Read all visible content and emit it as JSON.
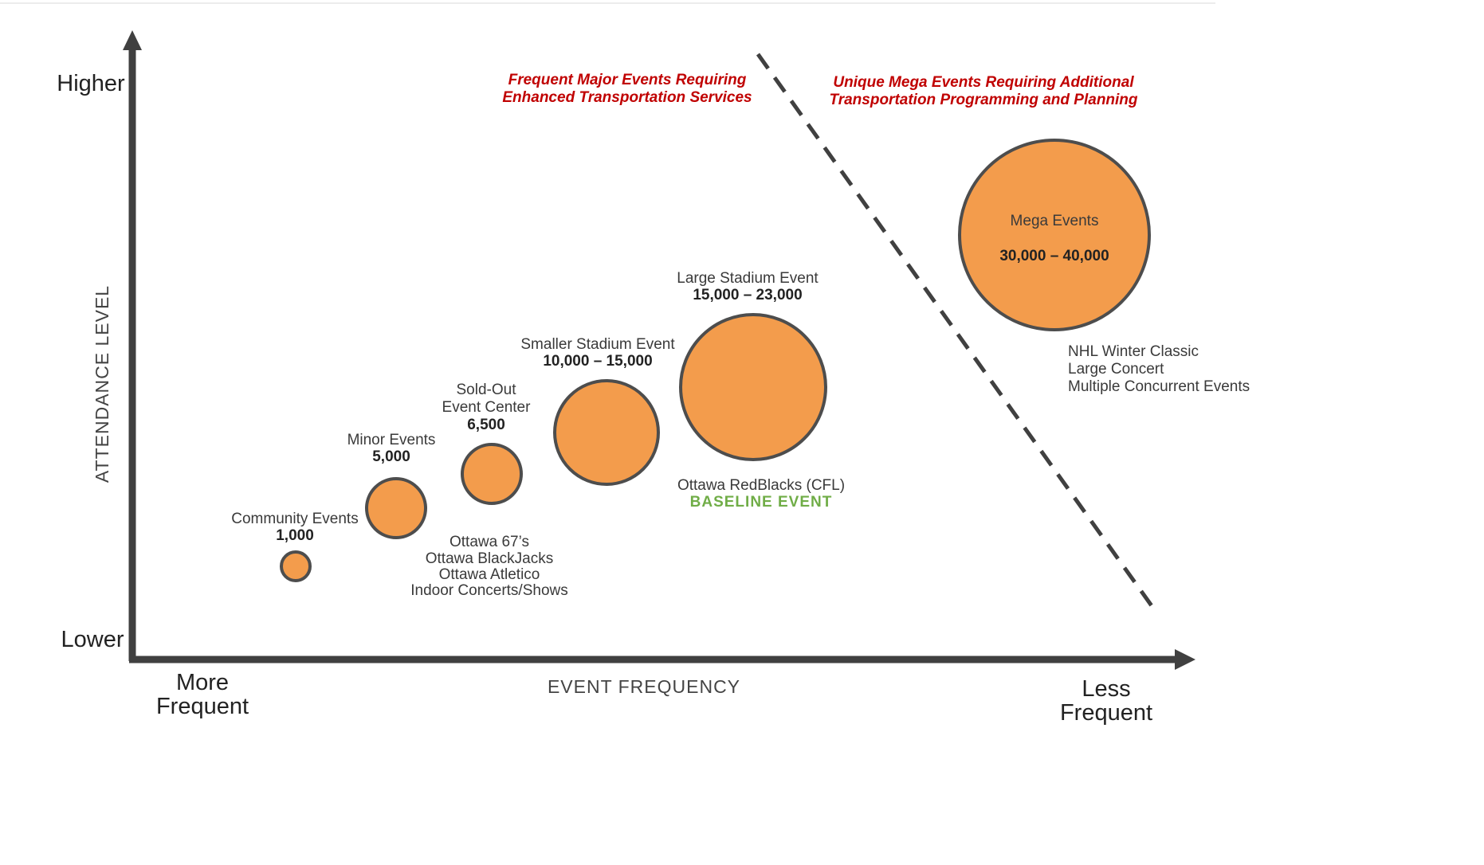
{
  "axes": {
    "y_top": "Higher",
    "y_bottom": "Lower",
    "y_title": "ATTENDANCE LEVEL",
    "x_left": [
      "More",
      "Frequent"
    ],
    "x_right": [
      "Less",
      "Frequent"
    ],
    "x_title": "EVENT FREQUENCY"
  },
  "zones": {
    "frequent_major": [
      "Frequent  Major  Events  Requiring",
      "Enhanced  Transportation  Services"
    ],
    "unique_mega": [
      "Unique  Mega  Events  Requiring  Additional",
      "Transportation  Programming  and  Planning"
    ]
  },
  "bubbles": [
    {
      "label": [
        "Community Events"
      ],
      "value": "1,000",
      "examples": []
    },
    {
      "label": [
        "Minor Events"
      ],
      "value": "5,000",
      "examples": []
    },
    {
      "label": [
        "Sold-Out",
        "Event  Center"
      ],
      "value": "6,500",
      "examples": [
        "Ottawa 67’s",
        "Ottawa BlackJacks",
        "Ottawa Atletico",
        "Indoor Concerts/Shows"
      ]
    },
    {
      "label": [
        "Smaller  Stadium  Event"
      ],
      "value": "10,000  – 15,000",
      "examples": []
    },
    {
      "label": [
        "Large  Stadium  Event"
      ],
      "value": "15,000  – 23,000",
      "examples": [
        "Ottawa  RedBlacks  (CFL)"
      ],
      "tag": "BASELINE  EVENT"
    },
    {
      "label": [
        "Mega  Events"
      ],
      "value": "30,000  – 40,000",
      "examples": [
        "NHL  Winter  Classic",
        "Large  Concert",
        "Multiple  Concurrent  Events"
      ]
    }
  ],
  "colors": {
    "bubble_fill": "#f39c4c",
    "bubble_stroke": "#4d4d4d",
    "axis": "#404040",
    "zone_text": "#c00000",
    "baseline_text": "#70ad47"
  }
}
